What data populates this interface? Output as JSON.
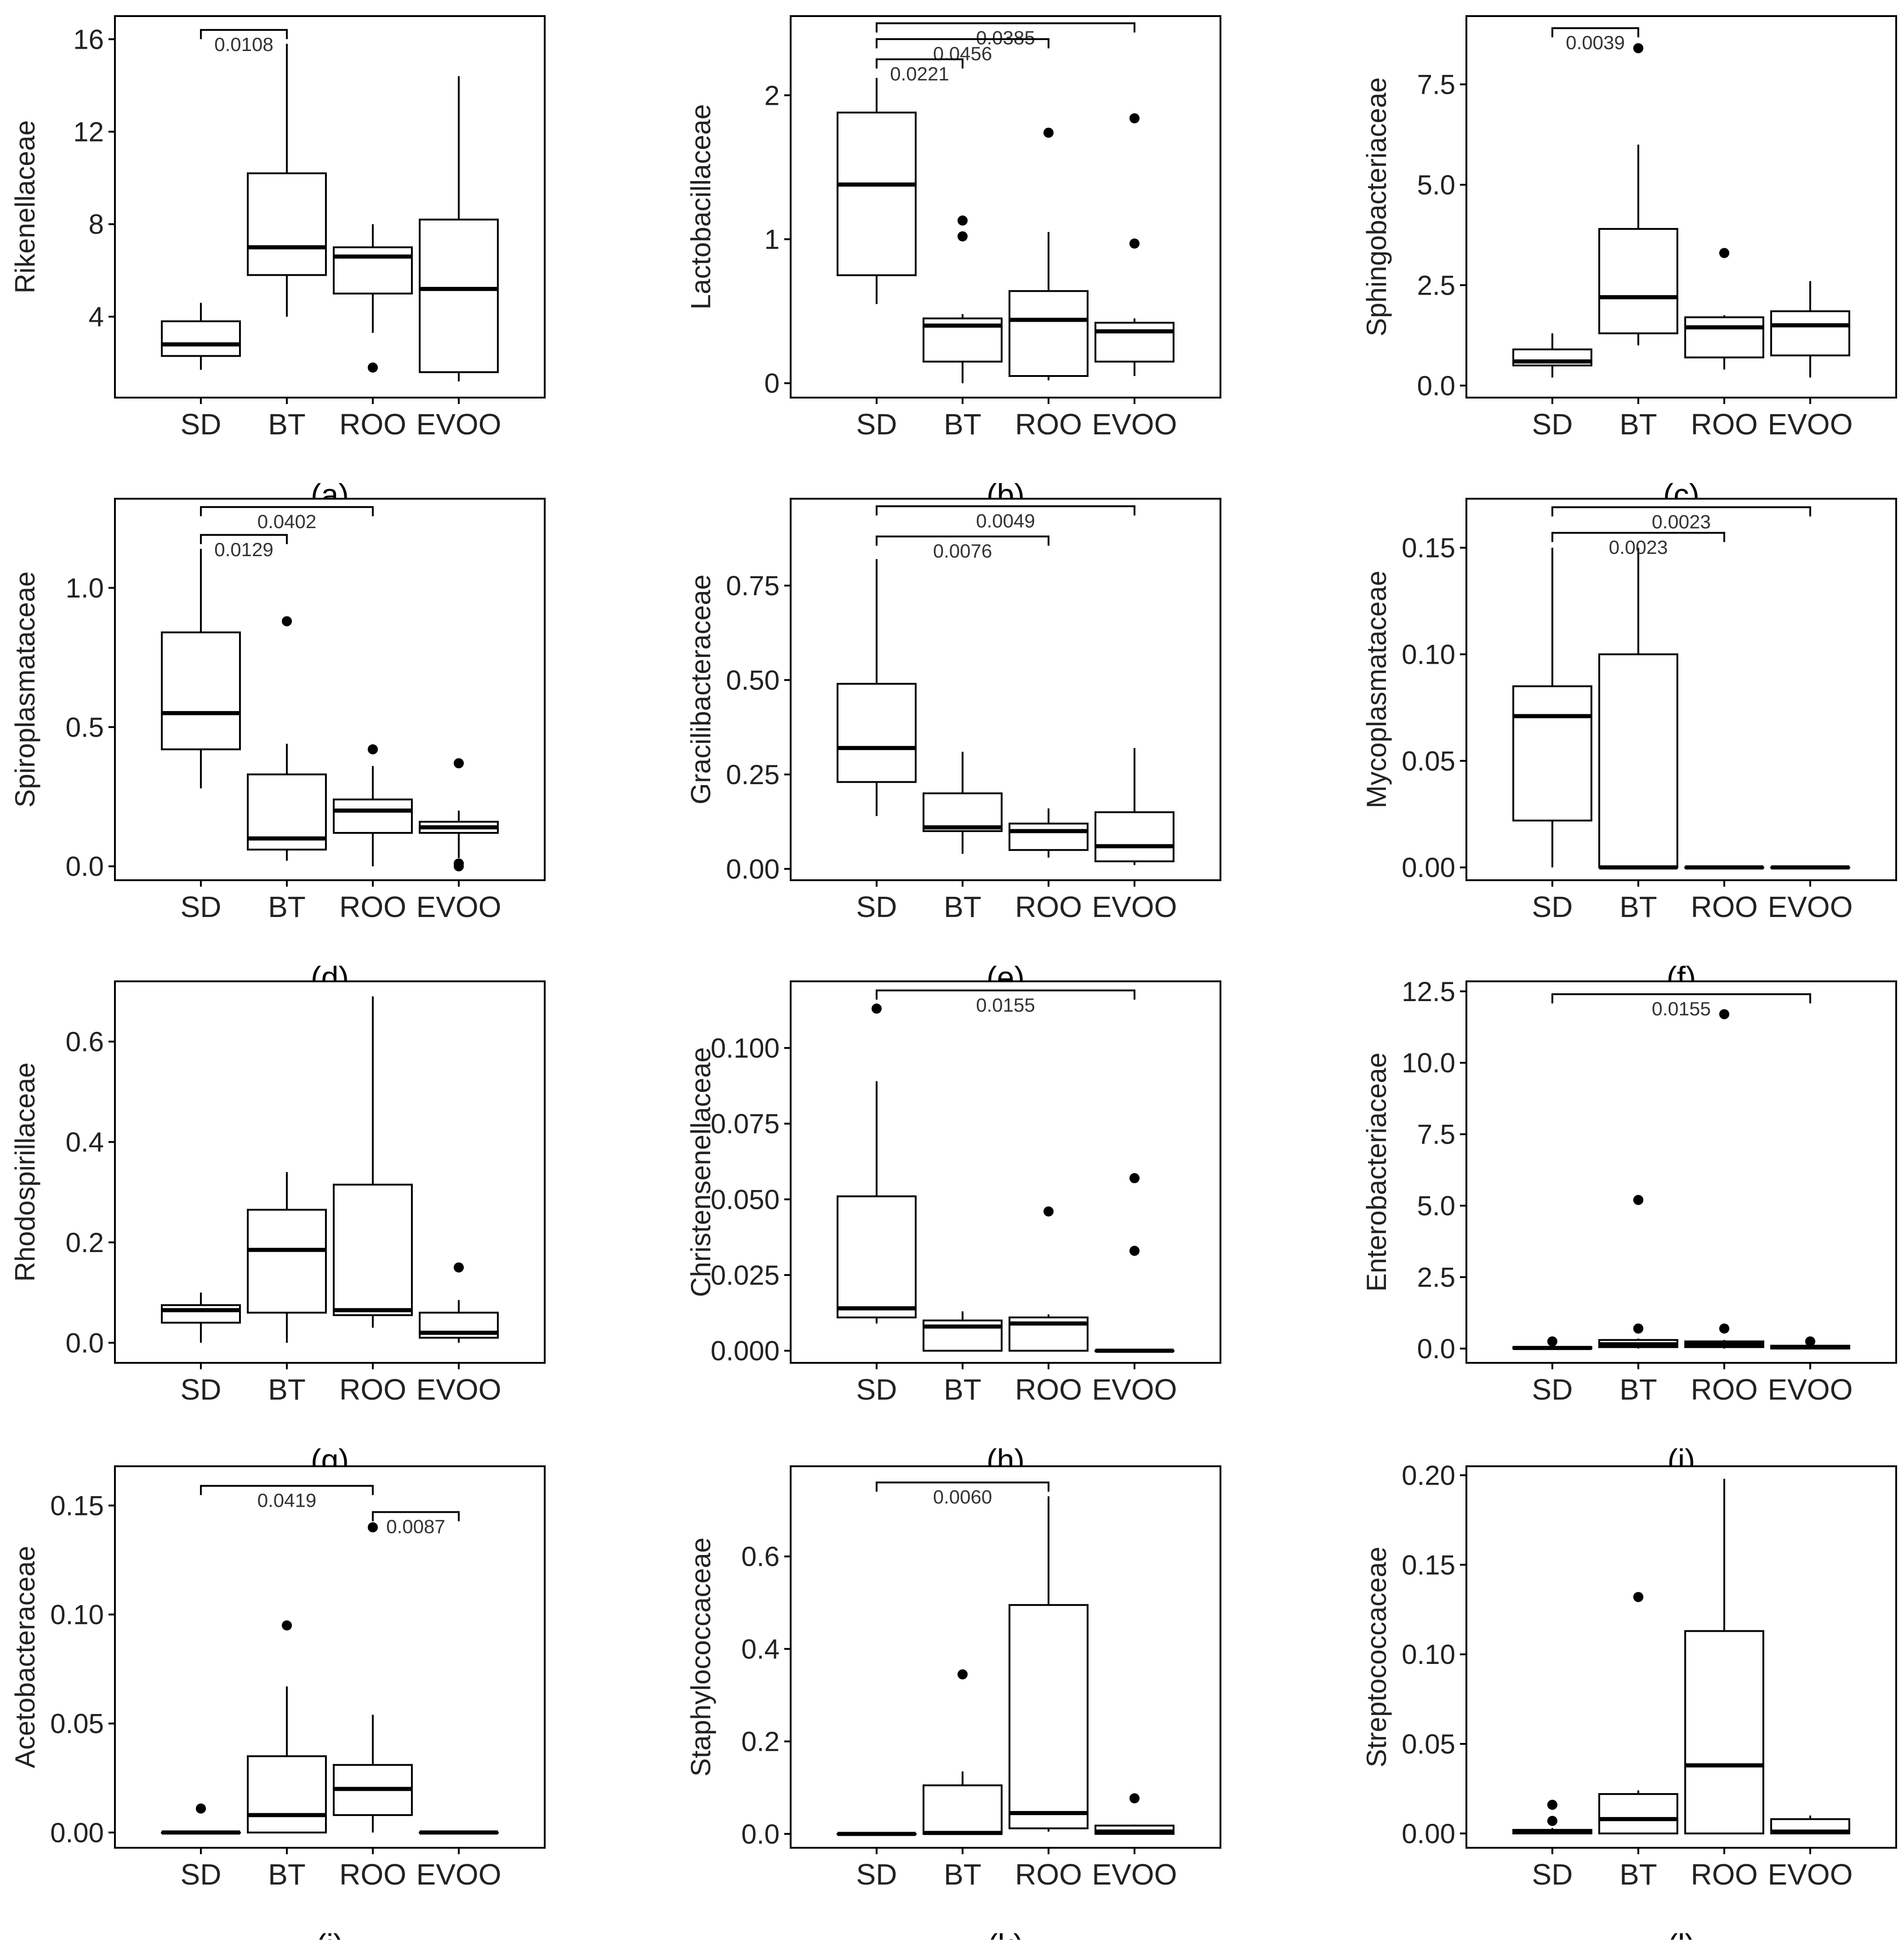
{
  "figure": {
    "groups": [
      "SD",
      "BT",
      "ROO",
      "EVOO"
    ]
  },
  "chart_data": [
    {
      "panel": "a",
      "caption": "(a)",
      "type": "box",
      "ylabel": "Rikenellaceae",
      "categories": [
        "SD",
        "BT",
        "ROO",
        "EVOO"
      ],
      "ylim": [
        0.5,
        17.0
      ],
      "yticks": [
        {
          "v": 4,
          "t": "4"
        },
        {
          "v": 8,
          "t": "8"
        },
        {
          "v": 12,
          "t": "12"
        },
        {
          "v": 16,
          "t": "16"
        }
      ],
      "boxes": [
        {
          "group": "SD",
          "wlo": 1.7,
          "q1": 2.3,
          "med": 2.8,
          "q3": 3.8,
          "whi": 4.6,
          "out": []
        },
        {
          "group": "BT",
          "wlo": 4.0,
          "q1": 5.8,
          "med": 7.0,
          "q3": 10.2,
          "whi": 15.8,
          "out": []
        },
        {
          "group": "ROO",
          "wlo": 3.3,
          "q1": 5.0,
          "med": 6.6,
          "q3": 7.0,
          "whi": 8.0,
          "out": [
            1.8
          ]
        },
        {
          "group": "EVOO",
          "wlo": 1.2,
          "q1": 1.6,
          "med": 5.2,
          "q3": 8.2,
          "whi": 14.4,
          "out": []
        }
      ],
      "brackets": [
        {
          "from": "SD",
          "to": "BT",
          "y": 16.4,
          "label": "0.0108"
        }
      ]
    },
    {
      "panel": "b",
      "caption": "(b)",
      "type": "box",
      "ylabel": "Lactobacillaceae",
      "categories": [
        "SD",
        "BT",
        "ROO",
        "EVOO"
      ],
      "ylim": [
        -0.1,
        2.55
      ],
      "yticks": [
        {
          "v": 0,
          "t": "0"
        },
        {
          "v": 1,
          "t": "1"
        },
        {
          "v": 2,
          "t": "2"
        }
      ],
      "boxes": [
        {
          "group": "SD",
          "wlo": 0.55,
          "q1": 0.75,
          "med": 1.38,
          "q3": 1.88,
          "whi": 2.12,
          "out": []
        },
        {
          "group": "BT",
          "wlo": 0.0,
          "q1": 0.15,
          "med": 0.4,
          "q3": 0.45,
          "whi": 0.48,
          "out": [
            1.02,
            1.13
          ]
        },
        {
          "group": "ROO",
          "wlo": 0.02,
          "q1": 0.05,
          "med": 0.44,
          "q3": 0.64,
          "whi": 1.05,
          "out": [
            1.74
          ]
        },
        {
          "group": "EVOO",
          "wlo": 0.05,
          "q1": 0.15,
          "med": 0.36,
          "q3": 0.42,
          "whi": 0.45,
          "out": [
            0.97,
            1.84
          ]
        }
      ],
      "brackets": [
        {
          "from": "SD",
          "to": "EVOO",
          "y": 2.5,
          "label": "0.0385"
        },
        {
          "from": "SD",
          "to": "ROO",
          "y": 2.39,
          "label": "0.0456"
        },
        {
          "from": "SD",
          "to": "BT",
          "y": 2.25,
          "label": "0.0221"
        }
      ]
    },
    {
      "panel": "c",
      "caption": "(c)",
      "type": "box",
      "ylabel": "Sphingobacteriaceae",
      "categories": [
        "SD",
        "BT",
        "ROO",
        "EVOO"
      ],
      "ylim": [
        -0.3,
        9.2
      ],
      "yticks": [
        {
          "v": 0,
          "t": "0.0"
        },
        {
          "v": 2.5,
          "t": "2.5"
        },
        {
          "v": 5,
          "t": "5.0"
        },
        {
          "v": 7.5,
          "t": "7.5"
        }
      ],
      "boxes": [
        {
          "group": "SD",
          "wlo": 0.2,
          "q1": 0.5,
          "med": 0.6,
          "q3": 0.9,
          "whi": 1.3,
          "out": []
        },
        {
          "group": "BT",
          "wlo": 1.0,
          "q1": 1.3,
          "med": 2.2,
          "q3": 3.9,
          "whi": 6.0,
          "out": [
            8.4
          ]
        },
        {
          "group": "ROO",
          "wlo": 0.4,
          "q1": 0.7,
          "med": 1.45,
          "q3": 1.7,
          "whi": 1.75,
          "out": [
            3.3
          ]
        },
        {
          "group": "EVOO",
          "wlo": 0.2,
          "q1": 0.75,
          "med": 1.5,
          "q3": 1.85,
          "whi": 2.6,
          "out": []
        }
      ],
      "brackets": [
        {
          "from": "SD",
          "to": "BT",
          "y": 8.9,
          "label": "0.0039"
        }
      ]
    },
    {
      "panel": "d",
      "caption": "(d)",
      "type": "box",
      "ylabel": "Spiroplasmataceae",
      "categories": [
        "SD",
        "BT",
        "ROO",
        "EVOO"
      ],
      "ylim": [
        -0.05,
        1.32
      ],
      "yticks": [
        {
          "v": 0,
          "t": "0.0"
        },
        {
          "v": 0.5,
          "t": "0.5"
        },
        {
          "v": 1.0,
          "t": "1.0"
        }
      ],
      "boxes": [
        {
          "group": "SD",
          "wlo": 0.28,
          "q1": 0.42,
          "med": 0.55,
          "q3": 0.84,
          "whi": 1.14,
          "out": []
        },
        {
          "group": "BT",
          "wlo": 0.02,
          "q1": 0.06,
          "med": 0.1,
          "q3": 0.33,
          "whi": 0.44,
          "out": [
            0.88
          ]
        },
        {
          "group": "ROO",
          "wlo": 0.0,
          "q1": 0.12,
          "med": 0.2,
          "q3": 0.24,
          "whi": 0.36,
          "out": [
            0.42
          ]
        },
        {
          "group": "EVOO",
          "wlo": 0.03,
          "q1": 0.12,
          "med": 0.14,
          "q3": 0.16,
          "whi": 0.2,
          "out": [
            0.0,
            0.01,
            0.37
          ]
        }
      ],
      "brackets": [
        {
          "from": "SD",
          "to": "ROO",
          "y": 1.29,
          "label": "0.0402"
        },
        {
          "from": "SD",
          "to": "BT",
          "y": 1.19,
          "label": "0.0129"
        }
      ]
    },
    {
      "panel": "e",
      "caption": "(e)",
      "type": "box",
      "ylabel": "Gracilibacteraceae",
      "categories": [
        "SD",
        "BT",
        "ROO",
        "EVOO"
      ],
      "ylim": [
        -0.03,
        0.98
      ],
      "yticks": [
        {
          "v": 0,
          "t": "0.00"
        },
        {
          "v": 0.25,
          "t": "0.25"
        },
        {
          "v": 0.5,
          "t": "0.50"
        },
        {
          "v": 0.75,
          "t": "0.75"
        }
      ],
      "boxes": [
        {
          "group": "SD",
          "wlo": 0.14,
          "q1": 0.23,
          "med": 0.32,
          "q3": 0.49,
          "whi": 0.82,
          "out": []
        },
        {
          "group": "BT",
          "wlo": 0.04,
          "q1": 0.1,
          "med": 0.11,
          "q3": 0.2,
          "whi": 0.31,
          "out": []
        },
        {
          "group": "ROO",
          "wlo": 0.03,
          "q1": 0.05,
          "med": 0.1,
          "q3": 0.12,
          "whi": 0.16,
          "out": []
        },
        {
          "group": "EVOO",
          "wlo": 0.01,
          "q1": 0.02,
          "med": 0.06,
          "q3": 0.15,
          "whi": 0.32,
          "out": []
        }
      ],
      "brackets": [
        {
          "from": "SD",
          "to": "EVOO",
          "y": 0.96,
          "label": "0.0049"
        },
        {
          "from": "SD",
          "to": "ROO",
          "y": 0.88,
          "label": "0.0076"
        }
      ]
    },
    {
      "panel": "f",
      "caption": "(f)",
      "type": "box",
      "ylabel": "Mycoplasmataceae",
      "categories": [
        "SD",
        "BT",
        "ROO",
        "EVOO"
      ],
      "ylim": [
        -0.006,
        0.173
      ],
      "yticks": [
        {
          "v": 0,
          "t": "0.00"
        },
        {
          "v": 0.05,
          "t": "0.05"
        },
        {
          "v": 0.1,
          "t": "0.10"
        },
        {
          "v": 0.15,
          "t": "0.15"
        }
      ],
      "boxes": [
        {
          "group": "SD",
          "wlo": 0.0,
          "q1": 0.022,
          "med": 0.071,
          "q3": 0.085,
          "whi": 0.15,
          "out": []
        },
        {
          "group": "BT",
          "wlo": 0.0,
          "q1": 0.0,
          "med": 0.0,
          "q3": 0.1,
          "whi": 0.15,
          "out": []
        },
        {
          "group": "ROO",
          "wlo": 0.0,
          "q1": 0.0,
          "med": 0.0,
          "q3": 0.0,
          "whi": 0.0,
          "out": []
        },
        {
          "group": "EVOO",
          "wlo": 0.0,
          "q1": 0.0,
          "med": 0.0,
          "q3": 0.0,
          "whi": 0.0,
          "out": []
        }
      ],
      "brackets": [
        {
          "from": "SD",
          "to": "EVOO",
          "y": 0.169,
          "label": "0.0023"
        },
        {
          "from": "SD",
          "to": "ROO",
          "y": 0.157,
          "label": "0.0023"
        }
      ]
    },
    {
      "panel": "g",
      "caption": "(g)",
      "type": "box",
      "ylabel": "Rhodospirillaceae",
      "categories": [
        "SD",
        "BT",
        "ROO",
        "EVOO"
      ],
      "ylim": [
        -0.04,
        0.72
      ],
      "yticks": [
        {
          "v": 0,
          "t": "0.0"
        },
        {
          "v": 0.2,
          "t": "0.2"
        },
        {
          "v": 0.4,
          "t": "0.4"
        },
        {
          "v": 0.6,
          "t": "0.6"
        }
      ],
      "boxes": [
        {
          "group": "SD",
          "wlo": 0.0,
          "q1": 0.04,
          "med": 0.065,
          "q3": 0.075,
          "whi": 0.1,
          "out": []
        },
        {
          "group": "BT",
          "wlo": 0.0,
          "q1": 0.06,
          "med": 0.185,
          "q3": 0.265,
          "whi": 0.34,
          "out": []
        },
        {
          "group": "ROO",
          "wlo": 0.03,
          "q1": 0.055,
          "med": 0.065,
          "q3": 0.315,
          "whi": 0.69,
          "out": []
        },
        {
          "group": "EVOO",
          "wlo": 0.0,
          "q1": 0.01,
          "med": 0.02,
          "q3": 0.06,
          "whi": 0.085,
          "out": [
            0.15
          ]
        }
      ],
      "brackets": []
    },
    {
      "panel": "h",
      "caption": "(h)",
      "type": "box",
      "ylabel": "Christensenellaceae",
      "categories": [
        "SD",
        "BT",
        "ROO",
        "EVOO"
      ],
      "ylim": [
        -0.004,
        0.122
      ],
      "yticks": [
        {
          "v": 0,
          "t": "0.000"
        },
        {
          "v": 0.025,
          "t": "0.025"
        },
        {
          "v": 0.05,
          "t": "0.050"
        },
        {
          "v": 0.075,
          "t": "0.075"
        },
        {
          "v": 0.1,
          "t": "0.100"
        }
      ],
      "boxes": [
        {
          "group": "SD",
          "wlo": 0.009,
          "q1": 0.011,
          "med": 0.014,
          "q3": 0.051,
          "whi": 0.089,
          "out": [
            0.113
          ]
        },
        {
          "group": "BT",
          "wlo": 0.0,
          "q1": 0.0,
          "med": 0.008,
          "q3": 0.01,
          "whi": 0.013,
          "out": []
        },
        {
          "group": "ROO",
          "wlo": 0.0,
          "q1": 0.0,
          "med": 0.009,
          "q3": 0.011,
          "whi": 0.012,
          "out": [
            0.046
          ]
        },
        {
          "group": "EVOO",
          "wlo": 0.0,
          "q1": 0.0,
          "med": 0.0,
          "q3": 0.0,
          "whi": 0.0,
          "out": [
            0.033,
            0.057
          ]
        }
      ],
      "brackets": [
        {
          "from": "SD",
          "to": "EVOO",
          "y": 0.119,
          "label": "0.0155"
        }
      ]
    },
    {
      "panel": "i",
      "caption": "(i)",
      "type": "box",
      "ylabel": "Enterobacteriaceae",
      "categories": [
        "SD",
        "BT",
        "ROO",
        "EVOO"
      ],
      "ylim": [
        -0.5,
        12.85
      ],
      "yticks": [
        {
          "v": 0,
          "t": "0.0"
        },
        {
          "v": 2.5,
          "t": "2.5"
        },
        {
          "v": 5,
          "t": "5.0"
        },
        {
          "v": 7.5,
          "t": "7.5"
        },
        {
          "v": 10,
          "t": "10.0"
        },
        {
          "v": 12.5,
          "t": "12.5"
        }
      ],
      "boxes": [
        {
          "group": "SD",
          "wlo": 0.0,
          "q1": 0.0,
          "med": 0.02,
          "q3": 0.05,
          "whi": 0.1,
          "out": [
            0.25
          ]
        },
        {
          "group": "BT",
          "wlo": 0.0,
          "q1": 0.05,
          "med": 0.15,
          "q3": 0.3,
          "whi": 0.35,
          "out": [
            0.7,
            5.2
          ]
        },
        {
          "group": "ROO",
          "wlo": 0.0,
          "q1": 0.05,
          "med": 0.15,
          "q3": 0.25,
          "whi": 0.3,
          "out": [
            0.7,
            11.7
          ]
        },
        {
          "group": "EVOO",
          "wlo": 0.0,
          "q1": 0.0,
          "med": 0.05,
          "q3": 0.1,
          "whi": 0.15,
          "out": [
            0.25
          ]
        }
      ],
      "brackets": [
        {
          "from": "SD",
          "to": "EVOO",
          "y": 12.4,
          "label": "0.0155"
        }
      ]
    },
    {
      "panel": "j",
      "caption": "(j)",
      "type": "box",
      "ylabel": "Acetobacteraceae",
      "categories": [
        "SD",
        "BT",
        "ROO",
        "EVOO"
      ],
      "ylim": [
        -0.007,
        0.168
      ],
      "yticks": [
        {
          "v": 0,
          "t": "0.00"
        },
        {
          "v": 0.05,
          "t": "0.05"
        },
        {
          "v": 0.1,
          "t": "0.10"
        },
        {
          "v": 0.15,
          "t": "0.15"
        }
      ],
      "boxes": [
        {
          "group": "SD",
          "wlo": 0.0,
          "q1": 0.0,
          "med": 0.0,
          "q3": 0.0,
          "whi": 0.0,
          "out": [
            0.011
          ]
        },
        {
          "group": "BT",
          "wlo": 0.0,
          "q1": 0.0,
          "med": 0.008,
          "q3": 0.035,
          "whi": 0.067,
          "out": [
            0.095
          ]
        },
        {
          "group": "ROO",
          "wlo": 0.0,
          "q1": 0.008,
          "med": 0.02,
          "q3": 0.031,
          "whi": 0.054,
          "out": [
            0.14
          ]
        },
        {
          "group": "EVOO",
          "wlo": 0.0,
          "q1": 0.0,
          "med": 0.0,
          "q3": 0.0,
          "whi": 0.0,
          "out": []
        }
      ],
      "brackets": [
        {
          "from": "SD",
          "to": "ROO",
          "y": 0.159,
          "label": "0.0419"
        },
        {
          "from": "ROO",
          "to": "EVOO",
          "y": 0.147,
          "label": "0.0087"
        }
      ]
    },
    {
      "panel": "k",
      "caption": "(k)",
      "type": "box",
      "ylabel": "Staphylococcaceae",
      "categories": [
        "SD",
        "BT",
        "ROO",
        "EVOO"
      ],
      "ylim": [
        -0.03,
        0.795
      ],
      "yticks": [
        {
          "v": 0,
          "t": "0.0"
        },
        {
          "v": 0.2,
          "t": "0.2"
        },
        {
          "v": 0.4,
          "t": "0.4"
        },
        {
          "v": 0.6,
          "t": "0.6"
        }
      ],
      "boxes": [
        {
          "group": "SD",
          "wlo": 0.0,
          "q1": 0.0,
          "med": 0.0,
          "q3": 0.0,
          "whi": 0.0,
          "out": []
        },
        {
          "group": "BT",
          "wlo": 0.0,
          "q1": 0.0,
          "med": 0.002,
          "q3": 0.105,
          "whi": 0.135,
          "out": [
            0.345
          ]
        },
        {
          "group": "ROO",
          "wlo": 0.005,
          "q1": 0.012,
          "med": 0.045,
          "q3": 0.495,
          "whi": 0.73,
          "out": []
        },
        {
          "group": "EVOO",
          "wlo": 0.0,
          "q1": 0.0,
          "med": 0.005,
          "q3": 0.018,
          "whi": 0.02,
          "out": [
            0.077
          ]
        }
      ],
      "brackets": [
        {
          "from": "SD",
          "to": "ROO",
          "y": 0.76,
          "label": "0.0060"
        }
      ]
    },
    {
      "panel": "l",
      "caption": "(l)",
      "type": "box",
      "ylabel": "Streptococcaceae",
      "categories": [
        "SD",
        "BT",
        "ROO",
        "EVOO"
      ],
      "ylim": [
        -0.008,
        0.205
      ],
      "yticks": [
        {
          "v": 0,
          "t": "0.00"
        },
        {
          "v": 0.05,
          "t": "0.05"
        },
        {
          "v": 0.1,
          "t": "0.10"
        },
        {
          "v": 0.15,
          "t": "0.15"
        },
        {
          "v": 0.2,
          "t": "0.20"
        }
      ],
      "boxes": [
        {
          "group": "SD",
          "wlo": 0.0,
          "q1": 0.0,
          "med": 0.001,
          "q3": 0.002,
          "whi": 0.003,
          "out": [
            0.007,
            0.016
          ]
        },
        {
          "group": "BT",
          "wlo": 0.0,
          "q1": 0.0,
          "med": 0.008,
          "q3": 0.022,
          "whi": 0.024,
          "out": [
            0.132
          ]
        },
        {
          "group": "ROO",
          "wlo": 0.0,
          "q1": 0.0,
          "med": 0.038,
          "q3": 0.113,
          "whi": 0.198,
          "out": []
        },
        {
          "group": "EVOO",
          "wlo": 0.0,
          "q1": 0.0,
          "med": 0.001,
          "q3": 0.008,
          "whi": 0.01,
          "out": []
        }
      ],
      "brackets": []
    }
  ]
}
